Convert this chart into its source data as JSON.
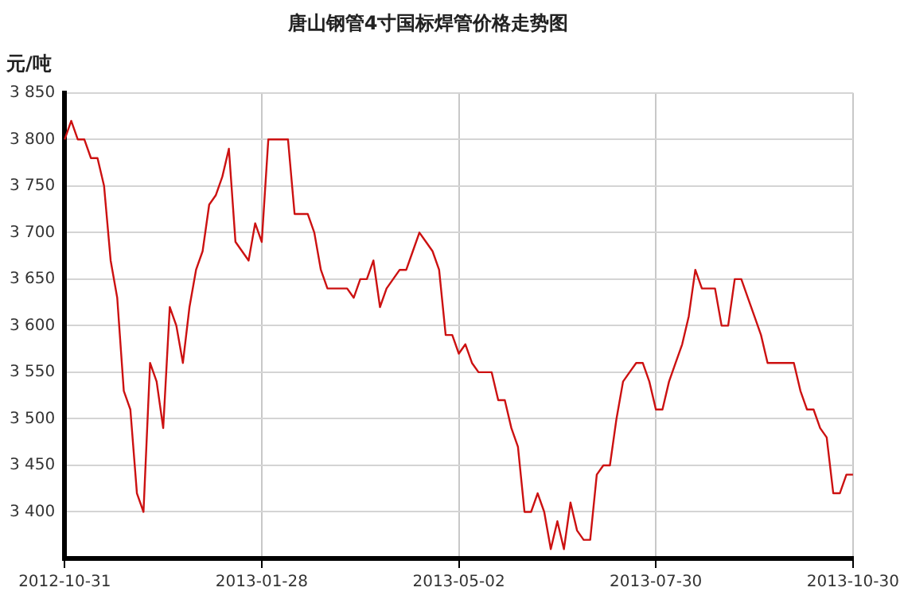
{
  "chart_data": {
    "type": "line",
    "title": "唐山钢管4寸国标焊管价格走势图",
    "ylabel": "元/吨",
    "categories": [
      "2012-10-31",
      null,
      null,
      null,
      null,
      null,
      null,
      null,
      null,
      null,
      null,
      null,
      null,
      null,
      null,
      null,
      null,
      null,
      null,
      null,
      null,
      null,
      null,
      null,
      null,
      null,
      null,
      null,
      null,
      null,
      "2013-01-28",
      null,
      null,
      null,
      null,
      null,
      null,
      null,
      null,
      null,
      null,
      null,
      null,
      null,
      null,
      null,
      null,
      null,
      null,
      null,
      null,
      null,
      null,
      null,
      null,
      null,
      null,
      null,
      null,
      null,
      "2013-05-02",
      null,
      null,
      null,
      null,
      null,
      null,
      null,
      null,
      null,
      null,
      null,
      null,
      null,
      null,
      null,
      null,
      null,
      null,
      null,
      null,
      null,
      null,
      null,
      null,
      null,
      null,
      null,
      null,
      null,
      "2013-07-30",
      null,
      null,
      null,
      null,
      null,
      null,
      null,
      null,
      null,
      null,
      null,
      null,
      null,
      null,
      null,
      null,
      null,
      null,
      null,
      null,
      null,
      null,
      null,
      null,
      null,
      null,
      null,
      null,
      null,
      "2013-10-30"
    ],
    "series": [
      {
        "color": "#cc1111",
        "values": [
          3800,
          3820,
          3800,
          3800,
          3780,
          3780,
          3750,
          3670,
          3630,
          3530,
          3510,
          3420,
          3400,
          3560,
          3540,
          3490,
          3620,
          3600,
          3560,
          3620,
          3660,
          3680,
          3730,
          3740,
          3760,
          3790,
          3690,
          3680,
          3670,
          3710,
          3690,
          3800,
          3800,
          3800,
          3800,
          3720,
          3720,
          3720,
          3700,
          3660,
          3640,
          3640,
          3640,
          3640,
          3630,
          3650,
          3650,
          3670,
          3620,
          3640,
          3650,
          3660,
          3660,
          3680,
          3700,
          3690,
          3680,
          3660,
          3590,
          3590,
          3570,
          3580,
          3560,
          3550,
          3550,
          3550,
          3520,
          3520,
          3490,
          3470,
          3400,
          3400,
          3420,
          3400,
          3360,
          3390,
          3360,
          3410,
          3380,
          3370,
          3370,
          3440,
          3450,
          3450,
          3500,
          3540,
          3550,
          3560,
          3560,
          3540,
          3510,
          3510,
          3540,
          3560,
          3580,
          3610,
          3660,
          3640,
          3640,
          3640,
          3600,
          3600,
          3650,
          3650,
          3630,
          3610,
          3590,
          3560,
          3560,
          3560,
          3560,
          3560,
          3530,
          3510,
          3510,
          3490,
          3480,
          3420,
          3420,
          3440,
          3440
        ]
      }
    ],
    "ylim": [
      3350,
      3850
    ],
    "yticks": [
      {
        "value": 3400,
        "label": "3 400"
      },
      {
        "value": 3450,
        "label": "3 450"
      },
      {
        "value": 3500,
        "label": "3 500"
      },
      {
        "value": 3550,
        "label": "3 550"
      },
      {
        "value": 3600,
        "label": "3 600"
      },
      {
        "value": 3650,
        "label": "3 650"
      },
      {
        "value": 3700,
        "label": "3 700"
      },
      {
        "value": 3750,
        "label": "3 750"
      },
      {
        "value": 3800,
        "label": "3 800"
      },
      {
        "value": 3850,
        "label": "3 850"
      }
    ],
    "grid": true,
    "legend": false,
    "marker": "none",
    "line_style": "solid"
  }
}
